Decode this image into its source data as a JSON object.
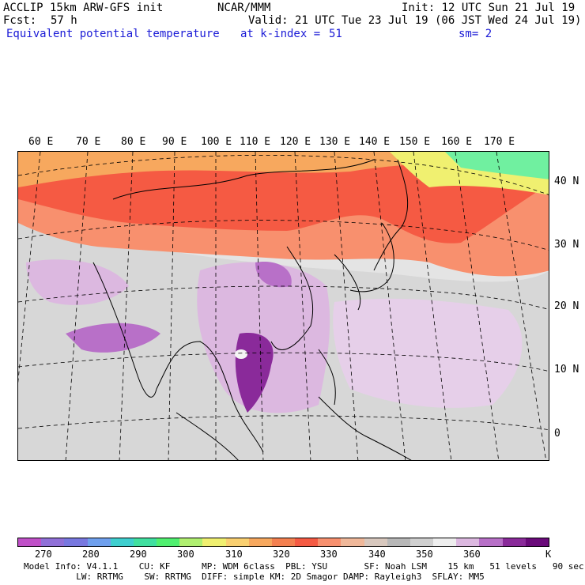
{
  "header": {
    "model_title": "ACCLIP 15km ARW-GFS init",
    "center": "NCAR/MMM",
    "init": "Init: 12 UTC Sun 21 Jul 19",
    "fcst_label": "Fcst:",
    "fcst_value": "57 h",
    "valid": "Valid: 21 UTC Tue 23 Jul 19 (06 JST Wed 24 Jul 19)",
    "field": "Equivalent potential temperature",
    "level": "at k-index =",
    "level_value": "51",
    "smoothing": "sm= 2"
  },
  "map": {
    "lon_labels": [
      "60 E",
      "70 E",
      "80 E",
      "90 E",
      "100 E",
      "110 E",
      "120 E",
      "130 E",
      "140 E",
      "150 E",
      "160 E",
      "170 E"
    ],
    "lat_labels": [
      "40 N",
      "30 N",
      "20 N",
      "10 N",
      "0"
    ]
  },
  "legend": {
    "colors": [
      "#c050c8",
      "#9070d8",
      "#7878e0",
      "#6fa0ee",
      "#3ecfcf",
      "#40e0a0",
      "#50f070",
      "#b0f070",
      "#f0f070",
      "#fad070",
      "#f7a85e",
      "#f48050",
      "#f55a43",
      "#f8906e",
      "#f0b89a",
      "#d8c8be",
      "#b8b8b8",
      "#d0d0d0",
      "#eeeeee",
      "#dcb8e0",
      "#b870c8",
      "#8a2a9a",
      "#6a0a7a"
    ],
    "labels": [
      "270",
      "280",
      "290",
      "300",
      "310",
      "320",
      "330",
      "340",
      "350",
      "360",
      "K"
    ]
  },
  "footer": {
    "line1": "Model Info: V4.1.1    CU: KF      MP: WDM 6class  PBL: YSU       SF: Noah LSM    15 km   51 levels   90 sec",
    "line2": "          LW: RRTMG    SW: RRTMG  DIFF: simple KM: 2D Smagor DAMP: Rayleigh3  SFLAY: MM5"
  }
}
